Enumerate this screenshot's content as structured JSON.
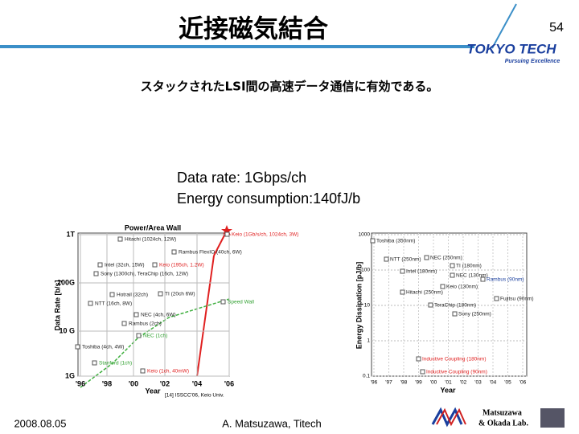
{
  "header": {
    "title": "近接磁気結合",
    "page_number": "54",
    "logo": "TOKYO TECH",
    "logo_tagline": "Pursuing Excellence"
  },
  "body": {
    "subtitle": "スタックされたLSI間の高速データ通信に有効である。",
    "lines": [
      "Data rate: 1Gbps/ch",
      "Energy consumption:140fJ/b"
    ]
  },
  "figures": [
    {
      "title": "Power/Area Wall",
      "y_label": "Data Rate [b/s]",
      "x_label": "Year",
      "y_ticks": [
        "1T",
        "100G",
        "10 G",
        "1G"
      ],
      "x_ticks": [
        "'96",
        "'98",
        "'00",
        "'02",
        "'04",
        "'06"
      ],
      "annotations": [
        "Keio (1Gb/s/ch, 1024ch, 3W)",
        "Hitachi (1024ch, 12W)",
        "Rambus FlexIO (40ch, 6W)",
        "Intel (32ch, 15W)",
        "Keio (195ch, 1.2W)",
        "Sony (1300ch), TeraChip (16ch, 12W)",
        "Hotrail (32ch)",
        "TI (20ch 6W)",
        "Speed Wall",
        "NTT (16ch, 8W)",
        "NEC (4ch, 6W)",
        "Rambus (2ch)",
        "NEC (1ch)",
        "Toshiba (4ch, 4W)",
        "Stanford (1ch)",
        "Keio (1ch, 40mW)"
      ],
      "citation": "[14] ISSCC'06, Keio Univ."
    },
    {
      "y_label": "Energy Dissipation [pJ/b]",
      "x_label": "Year",
      "y_ticks": [
        "1000",
        "100",
        "10",
        "1",
        "0.1"
      ],
      "x_ticks": [
        "'96",
        "'97",
        "'98",
        "'99",
        "'00",
        "'01",
        "'02",
        "'03",
        "'04",
        "'05",
        "'06"
      ],
      "annotations": [
        "Toshiba (350nm)",
        "NTT (250nm)",
        "NEC (250nm)",
        "TI (180nm)",
        "Intel (180nm)",
        "NEC (130nm)",
        "Hitachi (250nm)",
        "Keio (130nm)",
        "Rambus (90nm)",
        "TeraChip (180nm)",
        "Sony (250nm)",
        "Fujitsu (90nm)",
        "Inductive Coupling (180nm)",
        "Inductive Coupling (90nm)"
      ]
    }
  ],
  "footer": {
    "date": "2008.08.05",
    "author": "A. Matsuzawa, Titech",
    "lab_logo": [
      "Matsuzawa",
      "& Okada Lab."
    ]
  }
}
